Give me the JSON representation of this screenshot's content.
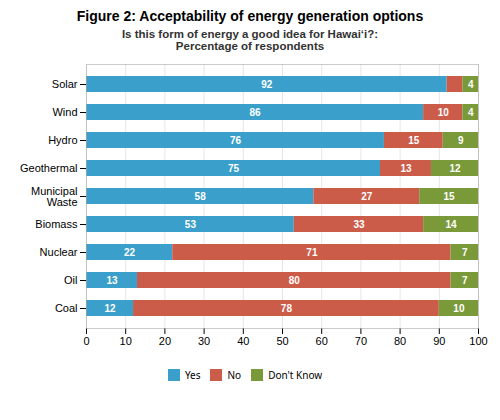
{
  "chart_data": {
    "type": "bar",
    "orientation": "horizontal",
    "stacked": true,
    "title": "Figure 2: Acceptability of energy generation options",
    "subtitle": "Is this form of energy a good idea for Hawaiʻi?:\nPercentage of respondents",
    "categories": [
      "Coal",
      "Oil",
      "Nuclear",
      "Biomass",
      "Municipal\nWaste",
      "Geothermal",
      "Hydro",
      "Wind",
      "Solar"
    ],
    "series": [
      {
        "name": "Yes",
        "color": "#3a9fca",
        "values": [
          12,
          13,
          22,
          53,
          58,
          75,
          76,
          86,
          92
        ]
      },
      {
        "name": "No",
        "color": "#cc5c4a",
        "values": [
          78,
          80,
          71,
          33,
          27,
          13,
          15,
          10,
          4
        ],
        "value_labels": [
          "78",
          "80",
          "71",
          "33",
          "27",
          "13",
          "15",
          "10",
          null
        ]
      },
      {
        "name": "Don't Know",
        "color": "#7a9a3a",
        "values": [
          10,
          7,
          7,
          14,
          15,
          12,
          9,
          4,
          4
        ]
      }
    ],
    "xlim": [
      0,
      100
    ],
    "xticks": [
      0,
      10,
      20,
      30,
      40,
      50,
      60,
      70,
      80,
      90,
      100
    ],
    "grid": true,
    "legend": "bottom",
    "data_labels": true
  }
}
